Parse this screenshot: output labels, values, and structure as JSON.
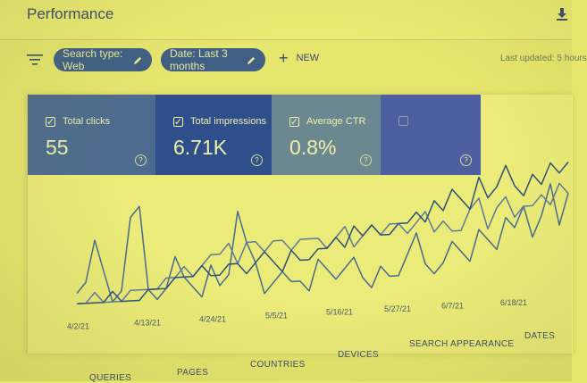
{
  "header": {
    "title": "Performance"
  },
  "filters": {
    "search_type": "Search type: Web",
    "date": "Date: Last 3 months",
    "new_label": "NEW",
    "last_updated": "Last updated: 5 hours"
  },
  "metrics": [
    {
      "label": "Total clicks",
      "value": "55",
      "color": "#4d6b8f"
    },
    {
      "label": "Total impressions",
      "value": "6.71K",
      "color": "#2e4f8c"
    },
    {
      "label": "Average CTR",
      "value": "0.8%",
      "color": "#6b8891"
    },
    {
      "label": "",
      "value": "",
      "color": "#4d5fa0"
    }
  ],
  "chart_data": {
    "type": "line",
    "x_ticks": [
      "4/2/21",
      "4/13/21",
      "4/24/21",
      "5/5/21",
      "5/16/21",
      "5/27/21",
      "6/7/21",
      "6/18/21"
    ],
    "series": [
      {
        "color": "#4a6a90",
        "values": [
          2,
          3,
          7,
          4,
          1,
          2,
          9,
          10,
          2,
          1,
          2,
          5,
          3,
          2,
          1,
          4,
          2,
          3,
          9,
          6,
          4,
          1,
          2,
          3,
          2,
          2,
          1,
          4,
          3,
          2,
          3,
          4,
          2,
          1,
          3,
          2,
          2,
          4,
          6,
          3,
          2,
          3,
          5,
          4,
          3,
          6,
          5,
          4,
          7,
          6,
          8,
          5,
          7,
          10,
          6,
          9
        ]
      },
      {
        "color": "#5f7a9a",
        "values": [
          1,
          1,
          2,
          1,
          1,
          1,
          2,
          2,
          2,
          2,
          3,
          3,
          4,
          3,
          4,
          5,
          5,
          6,
          4,
          6,
          6,
          5,
          6,
          6,
          5,
          6,
          6,
          6,
          5,
          6,
          7,
          5,
          6,
          7,
          6,
          7,
          7,
          6,
          7,
          8,
          6,
          7,
          6,
          6,
          8,
          9,
          6,
          8,
          9,
          7,
          8,
          8,
          9,
          8,
          10,
          9
        ]
      },
      {
        "color": "#2e4f7c",
        "values": [
          1,
          1,
          1,
          1,
          2,
          1,
          1,
          1,
          2,
          2,
          2,
          3,
          3,
          3,
          4,
          3,
          3,
          4,
          4,
          3,
          4,
          5,
          4,
          3,
          5,
          4,
          4,
          5,
          5,
          6,
          5,
          7,
          6,
          7,
          6,
          6,
          7,
          7,
          8,
          7,
          9,
          8,
          10,
          9,
          8,
          11,
          9,
          10,
          12,
          10,
          9,
          11,
          10,
          12,
          11,
          12
        ]
      }
    ],
    "ylim": [
      0,
      13
    ]
  },
  "tabs": [
    "QUERIES",
    "PAGES",
    "COUNTRIES",
    "DEVICES",
    "SEARCH APPEARANCE",
    "DATES"
  ]
}
